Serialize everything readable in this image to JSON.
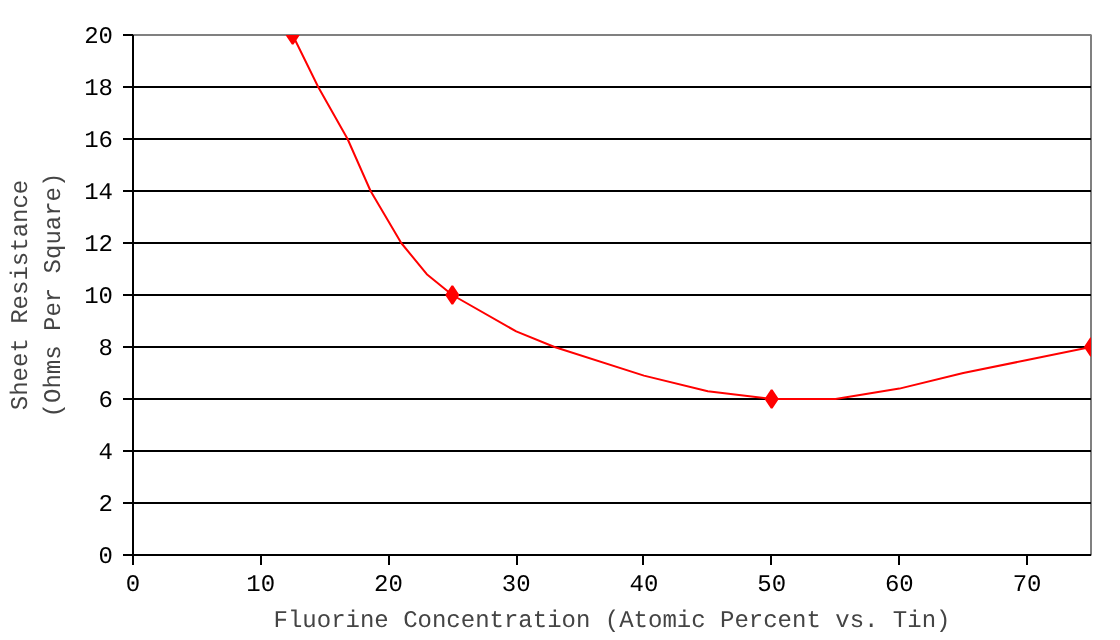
{
  "chart_data": {
    "type": "line",
    "xlabel": "Fluorine Concentration (Atomic Percent vs. Tin)",
    "ylabel": "Sheet Resistance\n(Ohms Per Square)",
    "series": [
      {
        "marker": "none",
        "color": "#ff0000",
        "x": [
          12.5,
          14.5,
          16.8,
          18.6,
          21,
          23,
          25,
          30,
          33,
          40,
          45,
          50,
          55,
          60,
          65,
          70,
          75
        ],
        "values": [
          20,
          18,
          16,
          14,
          12,
          10.8,
          10,
          8.6,
          8,
          6.9,
          6.3,
          6,
          6,
          6.4,
          7,
          7.5,
          8
        ]
      },
      {
        "type": "scatter",
        "marker": "diamond",
        "color": "#ff0000",
        "x": [
          12.5,
          25,
          50,
          75
        ],
        "values": [
          20,
          10,
          6,
          8
        ]
      }
    ],
    "xlim": [
      0,
      75
    ],
    "xticks": [
      0,
      10,
      20,
      30,
      40,
      50,
      60,
      70
    ],
    "ylim": [
      0,
      20
    ],
    "yticks": [
      0,
      2,
      4,
      6,
      8,
      10,
      12,
      14,
      16,
      18,
      20
    ],
    "grid": "y",
    "line_style": "solid"
  }
}
